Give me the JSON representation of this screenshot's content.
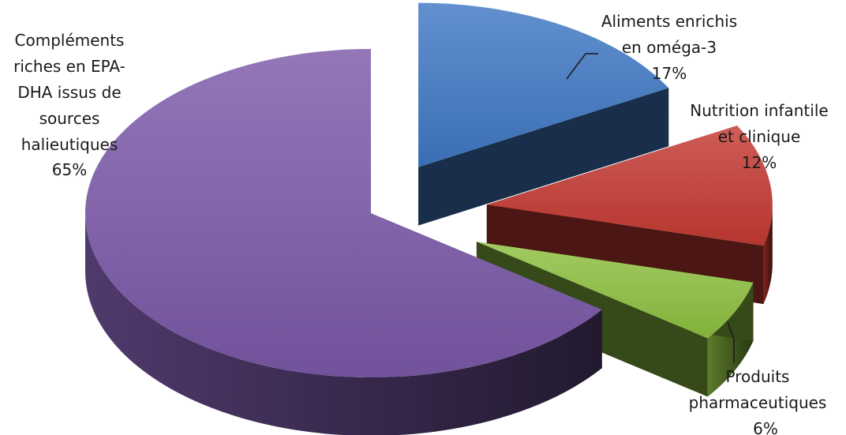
{
  "chart_data": {
    "type": "pie",
    "style": "3d-exploded",
    "title": "",
    "slices": [
      {
        "label": [
          "Aliments enrichis",
          "en oméga-3"
        ],
        "value": 17,
        "percent_label": "17%",
        "color": "#3f78c4"
      },
      {
        "label": [
          "Nutrition infantile",
          "et clinique"
        ],
        "value": 12,
        "percent_label": "12%",
        "color": "#c53a32"
      },
      {
        "label": [
          "Produits",
          "pharmaceutiques"
        ],
        "value": 6,
        "percent_label": "6%",
        "color": "#8dc040"
      },
      {
        "label": [
          "Compléments",
          "riches en EPA-",
          "DHA issus de",
          "sources",
          "halieutiques"
        ],
        "value": 65,
        "percent_label": "65%",
        "color": "#7b59a8"
      }
    ],
    "legend": "none",
    "data_labels": "outside"
  }
}
